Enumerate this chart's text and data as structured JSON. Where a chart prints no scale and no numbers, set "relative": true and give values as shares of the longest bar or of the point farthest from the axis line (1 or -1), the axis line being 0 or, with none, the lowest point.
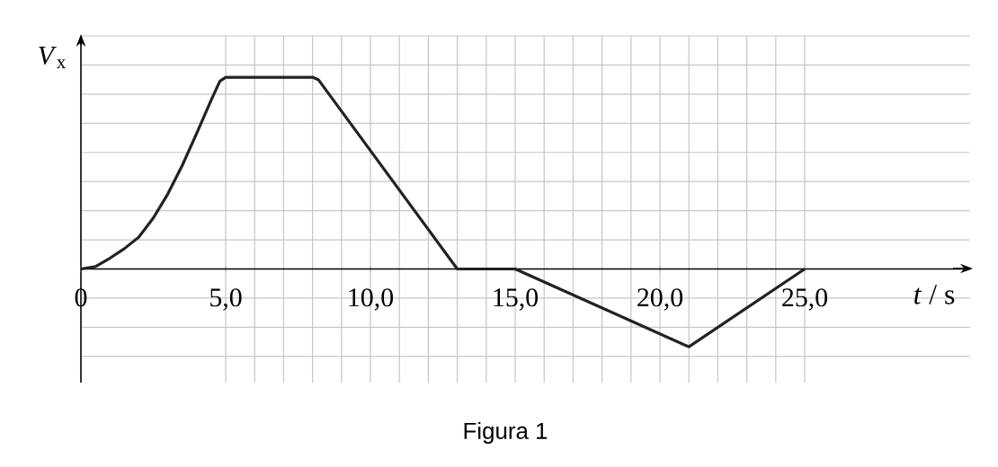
{
  "chart_data": {
    "type": "line",
    "relative": true,
    "xlabel": "*t* / s",
    "ylabel": "*V*$_{x}$",
    "x": [
      0,
      0.5,
      1,
      1.5,
      2,
      2.5,
      3,
      3.5,
      4,
      4.5,
      4.8,
      5,
      8,
      8.2,
      13,
      15,
      21,
      25
    ],
    "series": [
      {
        "color": "#222222",
        "values": [
          0,
          0.012,
          0.056,
          0.106,
          0.166,
          0.266,
          0.391,
          0.54,
          0.708,
          0.881,
          0.98,
          1,
          1,
          0.988,
          0,
          0,
          -0.406,
          0
        ]
      }
    ],
    "xlim": [
      0,
      30.7
    ],
    "xticks": [
      {
        "value": 0,
        "label": "0"
      },
      {
        "value": 5,
        "label": "5,0"
      },
      {
        "value": 10,
        "label": "10,0"
      },
      {
        "value": 15,
        "label": "15,0"
      },
      {
        "value": 20,
        "label": "20,0"
      },
      {
        "value": 25,
        "label": "25,0"
      }
    ],
    "grid": true,
    "marker": "none",
    "line_style": "solid",
    "annotations": [
      "Figura 1"
    ]
  }
}
